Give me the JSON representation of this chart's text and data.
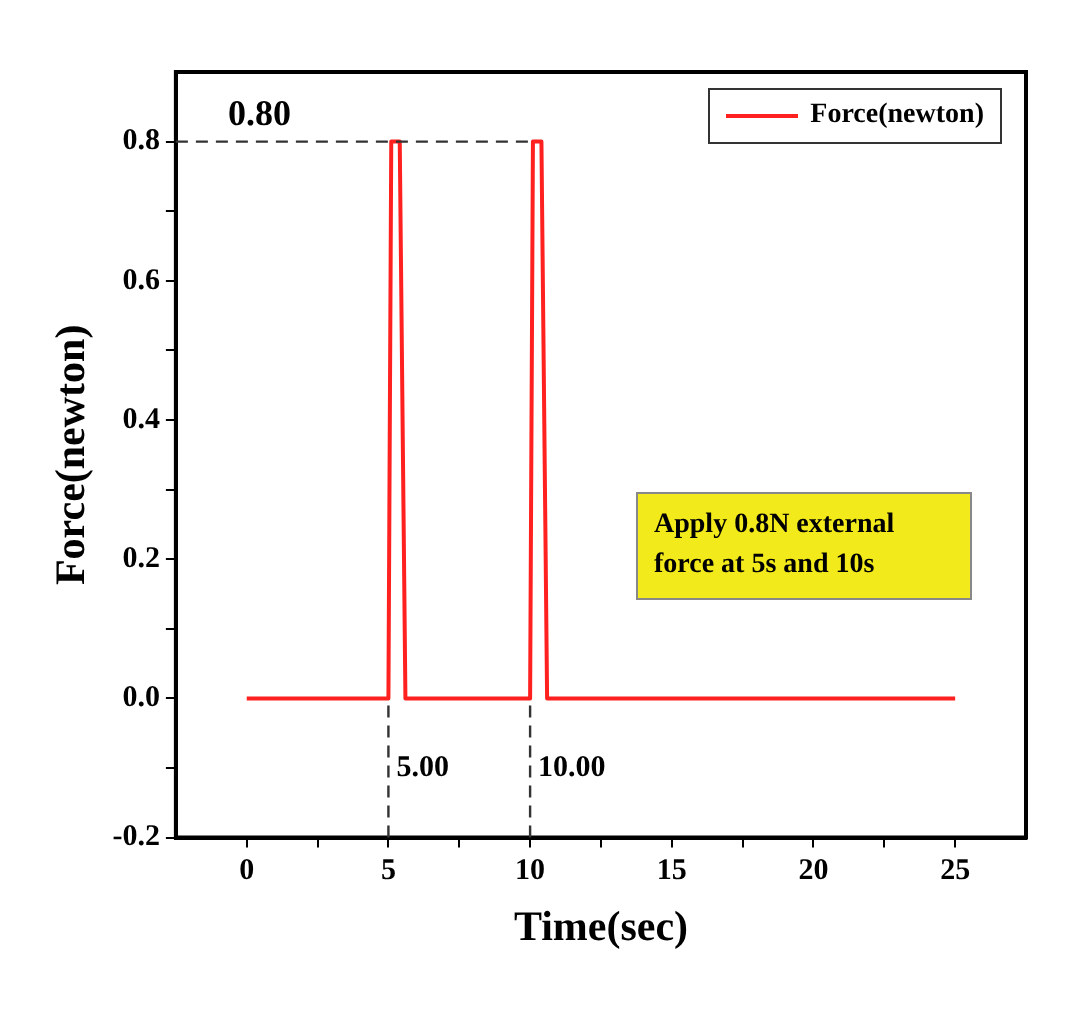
{
  "chart_data": {
    "type": "line",
    "xlabel": "Time(sec)",
    "ylabel": "Force(newton)",
    "x": [
      0,
      5,
      5.1,
      5.4,
      5.6,
      10,
      10.1,
      10.4,
      10.6,
      25
    ],
    "series": [
      {
        "name": "Force(newton)",
        "color": "#ff2020",
        "values": [
          0,
          0,
          0.8,
          0.8,
          0,
          0,
          0.8,
          0.8,
          0,
          0
        ]
      }
    ],
    "xlim": [
      -2.5,
      27.5
    ],
    "xticks": [
      0,
      {
        "value": 2.5,
        "label": null
      },
      5,
      {
        "value": 7.5,
        "label": null
      },
      10,
      {
        "value": 12.5,
        "label": null
      },
      15,
      {
        "value": 17.5,
        "label": null
      },
      20,
      {
        "value": 22.5,
        "label": null
      },
      25
    ],
    "ylim": [
      -0.2,
      0.9
    ],
    "yticks": [
      -0.2,
      {
        "value": -0.1,
        "label": null
      },
      {
        "value": 0,
        "label": "0.0"
      },
      {
        "value": 0.1,
        "label": null
      },
      0.2,
      {
        "value": 0.3,
        "label": null
      },
      0.4,
      {
        "value": 0.5,
        "label": null
      },
      0.6,
      {
        "value": 0.7,
        "label": null
      },
      0.8
    ],
    "ref_lines": [
      {
        "axis": "y",
        "value": 0.8,
        "label": "0.80",
        "line_style": "dashed"
      },
      {
        "axis": "x",
        "value": 5,
        "label": "5.00",
        "line_style": "dashed"
      },
      {
        "axis": "x",
        "value": 10,
        "label": "10.00",
        "line_style": "dashed"
      }
    ],
    "annotations": [
      "Apply 0.8N external force at 5s and 10s"
    ],
    "legend": "top right",
    "marker": "none",
    "line_style": "solid",
    "grid": false
  }
}
